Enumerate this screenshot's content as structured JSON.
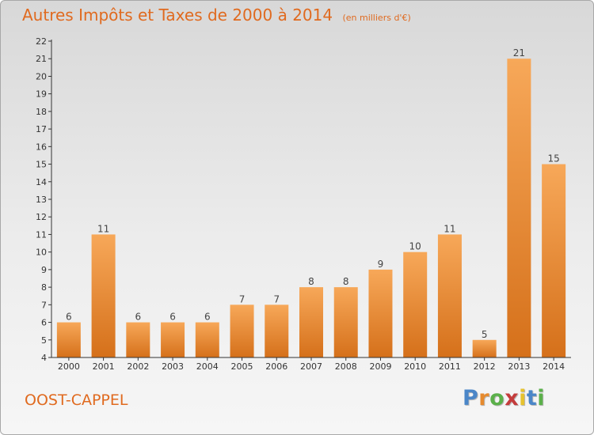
{
  "chart_data": {
    "type": "bar",
    "title": "Autres Impôts et Taxes de 2000 à 2014",
    "subtitle": "(en milliers d'€)",
    "categories": [
      "2000",
      "2001",
      "2002",
      "2003",
      "2004",
      "2005",
      "2006",
      "2007",
      "2008",
      "2009",
      "2010",
      "2011",
      "2012",
      "2013",
      "2014"
    ],
    "values": [
      6,
      11,
      6,
      6,
      6,
      7,
      7,
      8,
      8,
      9,
      10,
      11,
      5,
      21,
      15
    ],
    "ylim": [
      4,
      22
    ],
    "yticks": [
      4,
      5,
      6,
      7,
      8,
      9,
      10,
      11,
      12,
      13,
      14,
      15,
      16,
      17,
      18,
      19,
      20,
      21,
      22
    ],
    "grid": false,
    "bar_color": "#f0a050",
    "bar_color_dark": "#d77418"
  },
  "commune": "OOST-CAPPEL",
  "logo": "Proxiti",
  "colors": {
    "title": "#e06a1f",
    "axis": "#333333"
  }
}
